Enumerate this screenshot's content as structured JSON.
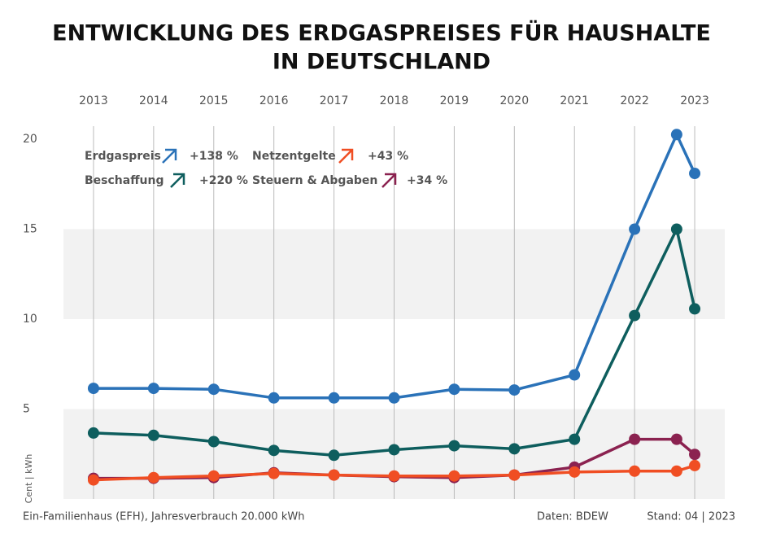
{
  "chart_data": {
    "type": "line",
    "title": "ENTWICKLUNG DES ERDGASPREISES FÜR HAUSHALTE",
    "title_line2": "IN DEUTSCHLAND",
    "y_label": "Cent | kWh",
    "footer_left": "Ein-Familienhaus (EFH), Jahresverbrauch 20.000 kWh",
    "source": "Daten: BDEW",
    "stand": "Stand: 04 | 2023",
    "x": [
      2013,
      2014,
      2015,
      2016,
      2017,
      2018,
      2019,
      2020,
      2021,
      2022,
      2022.7,
      2023
    ],
    "xlim": [
      2012.5,
      2023.5
    ],
    "xticks": [
      2013,
      2014,
      2015,
      2016,
      2017,
      2018,
      2019,
      2020,
      2021,
      2022,
      2023
    ],
    "ylim": [
      0,
      20.5
    ],
    "yticks": [
      5,
      10,
      15,
      20
    ],
    "grid": true,
    "series": [
      {
        "name": "Erdgaspreis",
        "change": "+138 %",
        "color": "#2a72b8",
        "values": [
          6.15,
          6.15,
          6.1,
          5.62,
          5.62,
          5.62,
          6.1,
          6.06,
          6.9,
          15.0,
          20.26,
          18.1
        ]
      },
      {
        "name": "Beschaffung",
        "change": "+220 %",
        "color": "#0e5e5e",
        "values": [
          3.67,
          3.54,
          3.19,
          2.7,
          2.43,
          2.74,
          2.96,
          2.79,
          3.32,
          10.2,
          15.0,
          10.57
        ]
      },
      {
        "name": "Netzentgelte",
        "change": "+43 %",
        "color": "#f04e23",
        "values": [
          1.06,
          1.19,
          1.28,
          1.42,
          1.33,
          1.28,
          1.28,
          1.33,
          1.5,
          1.55,
          1.55,
          1.86
        ]
      },
      {
        "name": "Steuern & Abgaben",
        "change": "+34 %",
        "color": "#8b2250",
        "values": [
          1.15,
          1.15,
          1.19,
          1.46,
          1.33,
          1.24,
          1.19,
          1.33,
          1.77,
          3.32,
          3.32,
          2.48
        ]
      }
    ]
  }
}
